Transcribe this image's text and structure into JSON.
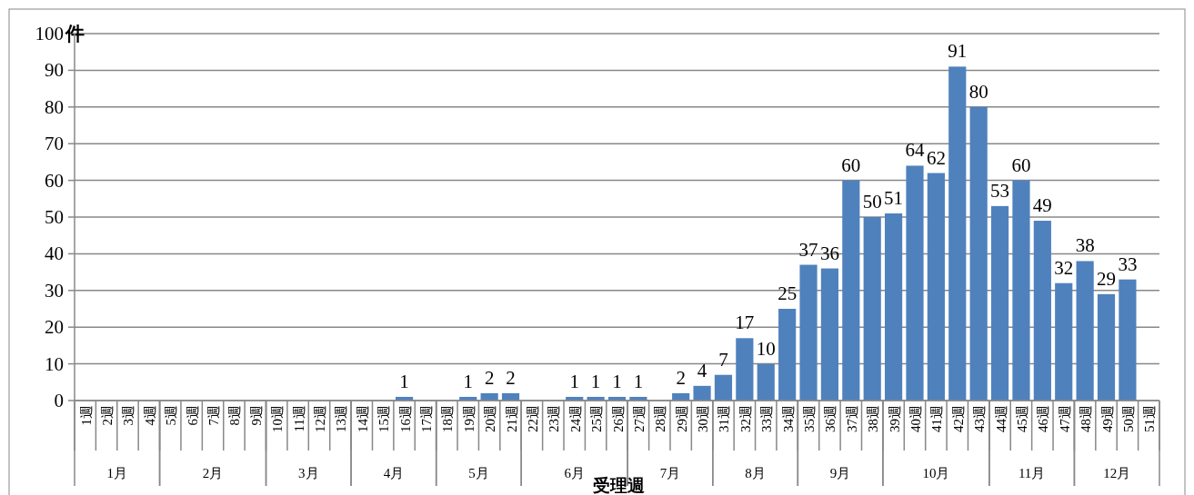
{
  "chart_data": {
    "type": "bar",
    "xlabel": "受理週",
    "ylabel": "件",
    "categories": [
      "1週",
      "2週",
      "3週",
      "4週",
      "5週",
      "6週",
      "7週",
      "8週",
      "9週",
      "10週",
      "11週",
      "12週",
      "13週",
      "14週",
      "15週",
      "16週",
      "17週",
      "18週",
      "19週",
      "20週",
      "21週",
      "22週",
      "23週",
      "24週",
      "25週",
      "26週",
      "27週",
      "28週",
      "29週",
      "30週",
      "31週",
      "32週",
      "33週",
      "34週",
      "35週",
      "36週",
      "37週",
      "38週",
      "39週",
      "40週",
      "41週",
      "42週",
      "43週",
      "44週",
      "45週",
      "46週",
      "47週",
      "48週",
      "49週",
      "50週",
      "51週"
    ],
    "values": [
      0,
      0,
      0,
      0,
      0,
      0,
      0,
      0,
      0,
      0,
      0,
      0,
      0,
      0,
      0,
      1,
      0,
      0,
      1,
      2,
      2,
      0,
      0,
      1,
      1,
      1,
      1,
      0,
      2,
      4,
      7,
      17,
      10,
      25,
      37,
      36,
      60,
      50,
      51,
      64,
      62,
      91,
      80,
      53,
      60,
      49,
      32,
      38,
      29,
      33,
      0
    ],
    "value_labels": [
      null,
      null,
      null,
      null,
      null,
      null,
      null,
      null,
      null,
      null,
      null,
      null,
      null,
      null,
      null,
      "1",
      null,
      null,
      "1",
      "2",
      "2",
      null,
      null,
      "1",
      "1",
      "1",
      "1",
      null,
      "2",
      "4",
      "7",
      "17",
      "10",
      "25",
      "37",
      "36",
      "60",
      "50",
      "51",
      "64",
      "62",
      "91",
      "80",
      "53",
      "60",
      "49",
      "32",
      "38",
      "29",
      "33",
      null
    ],
    "color": "#4f81bd",
    "ylim": [
      0,
      100
    ],
    "yticks": [
      0,
      10,
      20,
      30,
      40,
      50,
      60,
      70,
      80,
      90,
      100
    ],
    "grid": "y",
    "annotations": [
      "1月",
      "2月",
      "3月",
      "4月",
      "5月",
      "6月",
      "7月",
      "8月",
      "9月",
      "10月",
      "11月",
      "12月"
    ]
  }
}
